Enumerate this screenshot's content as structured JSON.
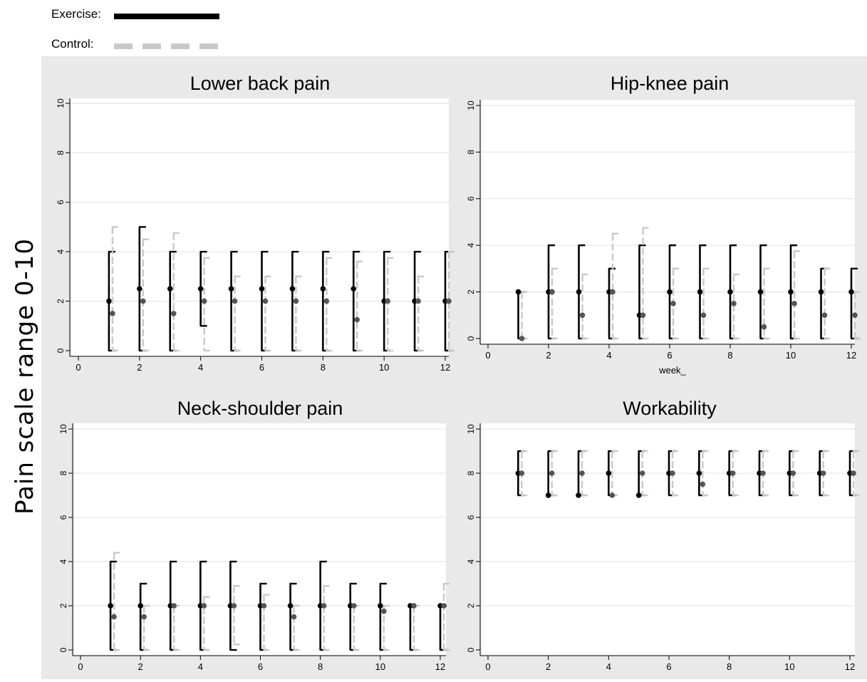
{
  "legend": {
    "exercise_label": "Exercise:",
    "control_label": "Control:"
  },
  "y_axis_title": "Pain scale  range 0-10",
  "colors": {
    "exercise": "#000000",
    "control": "#c8c8c8",
    "control_marker": "#555555",
    "panel_background": "#e9e9e9",
    "plot_background": "#ffffff",
    "gridline": "#e6e6e6"
  },
  "chart_data": [
    {
      "type": "scatter",
      "title": "Lower back pain",
      "xlabel": "",
      "xlim": [
        0,
        12
      ],
      "ylim": [
        0,
        10
      ],
      "x_ticks": [
        0,
        2,
        4,
        6,
        8,
        10,
        12
      ],
      "y_ticks": [
        0,
        2,
        4,
        6,
        8,
        10
      ],
      "grid": true,
      "error_bars": true,
      "series": [
        {
          "name": "Exercise",
          "x": [
            1,
            2,
            3,
            4,
            5,
            6,
            7,
            8,
            9,
            10,
            11,
            12
          ],
          "values": [
            2,
            2.5,
            2.5,
            2.5,
            2.5,
            2.5,
            2.5,
            2.5,
            2.5,
            2,
            2,
            2
          ],
          "low": [
            0,
            0,
            0,
            1,
            0,
            0,
            0,
            0,
            0,
            0,
            0,
            0
          ],
          "high": [
            4,
            5,
            4,
            4,
            4,
            4,
            4,
            4,
            4,
            4,
            4,
            4
          ]
        },
        {
          "name": "Control",
          "x": [
            1,
            2,
            3,
            4,
            5,
            6,
            7,
            8,
            9,
            10,
            11,
            12
          ],
          "values": [
            1.5,
            2,
            1.5,
            2,
            2,
            2,
            2,
            2,
            1.25,
            2,
            2,
            2
          ],
          "low": [
            0,
            0,
            0,
            0,
            0,
            0,
            0,
            0,
            0,
            0,
            0,
            0
          ],
          "high": [
            5,
            4.5,
            4.75,
            3.75,
            3,
            3,
            3,
            3.75,
            3.6,
            3.75,
            3,
            4
          ]
        }
      ]
    },
    {
      "type": "scatter",
      "title": "Hip-knee pain",
      "xlabel": "week_",
      "xlim": [
        0,
        12
      ],
      "ylim": [
        0,
        10
      ],
      "x_ticks": [
        0,
        2,
        4,
        6,
        8,
        10,
        12
      ],
      "y_ticks": [
        0,
        2,
        4,
        6,
        8,
        10
      ],
      "grid": true,
      "error_bars": true,
      "series": [
        {
          "name": "Exercise",
          "x": [
            1,
            2,
            3,
            4,
            5,
            6,
            7,
            8,
            9,
            10,
            11,
            12
          ],
          "values": [
            2,
            2,
            2,
            2,
            1,
            2,
            2,
            2,
            2,
            2,
            2,
            2
          ],
          "low": [
            0,
            0,
            0,
            0,
            0,
            0,
            0,
            0,
            0,
            0,
            0,
            0
          ],
          "high": [
            2,
            4,
            4,
            3,
            4,
            4,
            4,
            4,
            4,
            4,
            3,
            3
          ]
        },
        {
          "name": "Control",
          "x": [
            1,
            2,
            3,
            4,
            5,
            6,
            7,
            8,
            9,
            10,
            11,
            12
          ],
          "values": [
            0,
            2,
            1,
            2,
            1,
            1.5,
            1,
            1.5,
            0.5,
            1.5,
            1,
            1
          ],
          "low": [
            0,
            0,
            0,
            0,
            0,
            0,
            0,
            0,
            0,
            0,
            0,
            0
          ],
          "high": [
            2,
            3,
            2.75,
            4.5,
            4.75,
            3,
            3,
            2.75,
            3,
            3.75,
            3,
            2
          ]
        }
      ]
    },
    {
      "type": "scatter",
      "title": "Neck-shoulder pain",
      "xlabel": "",
      "xlim": [
        0,
        12
      ],
      "ylim": [
        0,
        10
      ],
      "x_ticks": [
        0,
        2,
        4,
        6,
        8,
        10,
        12
      ],
      "y_ticks": [
        0,
        2,
        4,
        6,
        8,
        10
      ],
      "grid": true,
      "error_bars": true,
      "series": [
        {
          "name": "Exercise",
          "x": [
            1,
            2,
            3,
            4,
            5,
            6,
            7,
            8,
            9,
            10,
            11,
            12
          ],
          "values": [
            2,
            2,
            2,
            2,
            2,
            2,
            2,
            2,
            2,
            2,
            2,
            2
          ],
          "low": [
            0,
            0,
            0,
            0,
            0,
            0,
            0,
            0,
            0,
            0,
            0,
            0
          ],
          "high": [
            4,
            3,
            4,
            4,
            4,
            3,
            3,
            4,
            3,
            3,
            2,
            2
          ]
        },
        {
          "name": "Control",
          "x": [
            1,
            2,
            3,
            4,
            5,
            6,
            7,
            8,
            9,
            10,
            11,
            12
          ],
          "values": [
            1.5,
            1.5,
            2,
            2,
            2,
            2,
            1.5,
            2,
            2,
            1.75,
            2,
            2
          ],
          "low": [
            0,
            0,
            0,
            0,
            0.25,
            0,
            0,
            0,
            0,
            0,
            0,
            0
          ],
          "high": [
            4.4,
            2,
            2,
            2.4,
            2.9,
            2.5,
            2,
            2.9,
            2,
            2,
            2,
            3
          ]
        }
      ]
    },
    {
      "type": "scatter",
      "title": "Workability",
      "xlabel": "",
      "xlim": [
        0,
        12
      ],
      "ylim": [
        0,
        10
      ],
      "x_ticks": [
        0,
        2,
        4,
        6,
        8,
        10,
        12
      ],
      "y_ticks": [
        0,
        2,
        4,
        6,
        8,
        10
      ],
      "grid": true,
      "error_bars": true,
      "series": [
        {
          "name": "Exercise",
          "x": [
            1,
            2,
            3,
            4,
            5,
            6,
            7,
            8,
            9,
            10,
            11,
            12
          ],
          "values": [
            8,
            7,
            7,
            8,
            7,
            8,
            8,
            8,
            8,
            8,
            8,
            8
          ],
          "low": [
            7,
            7,
            7,
            7,
            7,
            7,
            7,
            7,
            7,
            7,
            7,
            7
          ],
          "high": [
            9,
            9,
            9,
            9,
            9,
            9,
            9,
            9,
            9,
            9,
            9,
            9
          ]
        },
        {
          "name": "Control",
          "x": [
            1,
            2,
            3,
            4,
            5,
            6,
            7,
            8,
            9,
            10,
            11,
            12
          ],
          "values": [
            8,
            8,
            8,
            7,
            8,
            8,
            7.5,
            8,
            8,
            8,
            8,
            8
          ],
          "low": [
            7,
            7,
            7,
            7,
            7,
            7,
            7,
            7,
            7,
            7,
            7,
            7
          ],
          "high": [
            9,
            9,
            9,
            9,
            9,
            9,
            9,
            9,
            9,
            9,
            9,
            9
          ]
        }
      ]
    }
  ]
}
